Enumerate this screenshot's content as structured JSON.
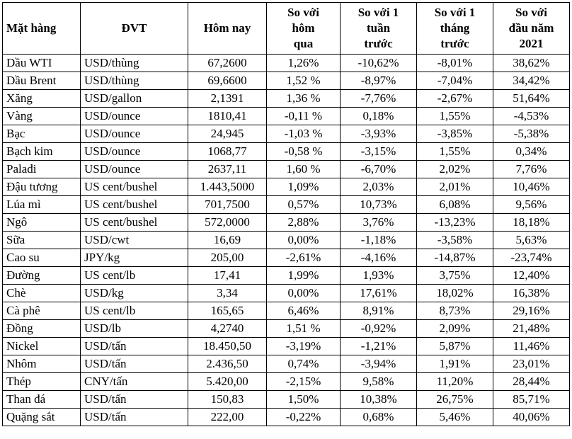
{
  "table": {
    "headers": [
      "Mặt hàng",
      "ĐVT",
      "Hôm nay",
      "So với\nhôm\nqua",
      "So với 1\ntuần\ntrước",
      "So với 1\ntháng\ntrước",
      "So với\nđầu năm\n2021"
    ],
    "rows": [
      [
        "Dầu WTI",
        "USD/thùng",
        "67,2600",
        "1,26%",
        "-10,62%",
        "-8,01%",
        "38,62%"
      ],
      [
        "Dầu Brent",
        "USD/thùng",
        "69,6600",
        "1,52 %",
        "-8,97%",
        "-7,04%",
        "34,42%"
      ],
      [
        "Xăng",
        "USD/gallon",
        "2,1391",
        "1,36 %",
        "-7,76%",
        "-2,67%",
        "51,64%"
      ],
      [
        "Vàng",
        "USD/ounce",
        "1810,41",
        "-0,11 %",
        "0,18%",
        "1,55%",
        "-4,53%"
      ],
      [
        "Bạc",
        "USD/ounce",
        "24,945",
        "-1,03 %",
        "-3,93%",
        "-3,85%",
        "-5,38%"
      ],
      [
        "Bạch kim",
        "USD/ounce",
        "1068,77",
        "-0,58 %",
        "-3,15%",
        "1,55%",
        "0,34%"
      ],
      [
        "Palađi",
        "USD/ounce",
        "2637,11",
        "1,60 %",
        "-6,70%",
        "2,02%",
        "7,76%"
      ],
      [
        "Đậu tương",
        "US cent/bushel",
        "1.443,5000",
        "1,09%",
        "2,03%",
        "2,01%",
        "10,46%"
      ],
      [
        "Lúa mì",
        "US cent/bushel",
        "701,7500",
        "0,57%",
        "10,73%",
        "6,08%",
        "9,56%"
      ],
      [
        "Ngô",
        "US cent/bushel",
        "572,0000",
        "2,88%",
        "3,76%",
        "-13,23%",
        "18,18%"
      ],
      [
        "Sữa",
        "USD/cwt",
        "16,69",
        "0,00%",
        "-1,18%",
        "-3,58%",
        "5,63%"
      ],
      [
        "Cao su",
        "JPY/kg",
        "205,00",
        "-2,61%",
        "-4,16%",
        "-14,87%",
        "-23,74%"
      ],
      [
        "Đường",
        "US cent/lb",
        "17,41",
        "1,99%",
        "1,93%",
        "3,75%",
        "12,40%"
      ],
      [
        "Chè",
        "USD/kg",
        "3,34",
        "0,00%",
        "17,61%",
        "18,02%",
        "16,38%"
      ],
      [
        "Cà phê",
        "US cent/lb",
        "165,65",
        "6,46%",
        "8,91%",
        "8,73%",
        "29,16%"
      ],
      [
        "Đồng",
        "USD/lb",
        "4,2740",
        "1,51 %",
        "-0,92%",
        "2,09%",
        "21,48%"
      ],
      [
        "Nickel",
        "USD/tấn",
        "18.450,50",
        "-3,19%",
        "-1,21%",
        "5,87%",
        "11,46%"
      ],
      [
        "Nhôm",
        "USD/tấn",
        "2.436,50",
        "0,74%",
        "-3,94%",
        "1,91%",
        "23,01%"
      ],
      [
        "Thép",
        "CNY/tấn",
        "5.420,00",
        "-2,15%",
        "9,58%",
        "11,20%",
        "28,44%"
      ],
      [
        "Than đá",
        "USD/tấn",
        "150,83",
        "1,50%",
        "10,38%",
        "26,75%",
        "85,71%"
      ],
      [
        "Quặng sắt",
        "USD/tấn",
        "222,00",
        "-0,22%",
        "0,68%",
        "5,46%",
        "40,06%"
      ]
    ]
  }
}
